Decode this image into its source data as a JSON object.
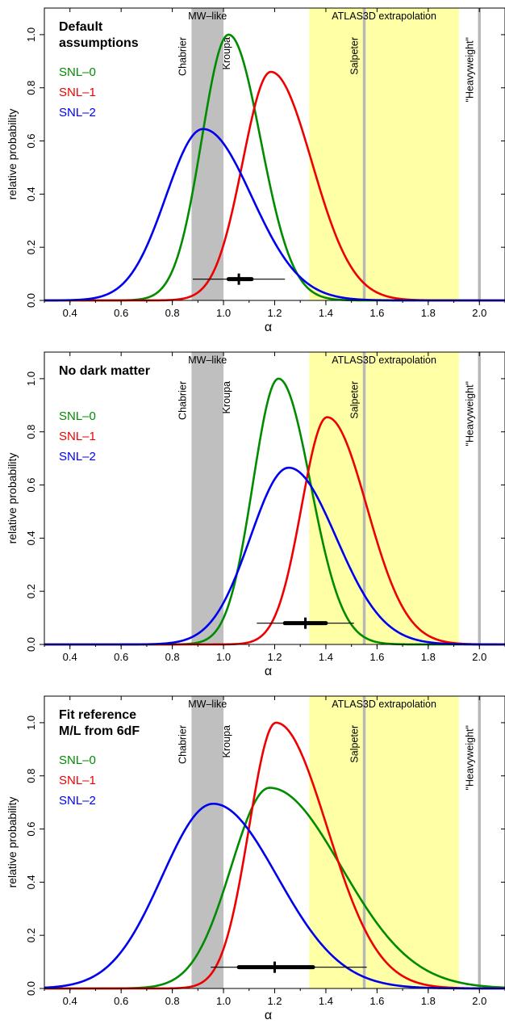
{
  "chart_data": [
    {
      "type": "line",
      "title": "",
      "annotation": [
        "Default",
        "assumptions"
      ],
      "xlabel": "α",
      "ylabel": "relative probability",
      "xlim": [
        0.3,
        2.1
      ],
      "ylim": [
        0.0,
        1.1
      ],
      "xticks": [
        "0.4",
        "0.6",
        "0.8",
        "1.0",
        "1.2",
        "1.4",
        "1.6",
        "1.8",
        "2.0"
      ],
      "yticks": [
        "0.0",
        "0.2",
        "0.4",
        "0.6",
        "0.8",
        "1.0"
      ],
      "bands": [
        {
          "label": "MW–like",
          "x": [
            0.875,
            1.0
          ],
          "color": "#bfbfbf"
        },
        {
          "label": "ATLAS3D extrapolation",
          "x": [
            1.335,
            1.92
          ],
          "color": "#ffffa6"
        }
      ],
      "vlines": [
        {
          "label": "Chabrier",
          "x": 0.875
        },
        {
          "label": "Kroupa",
          "x": 1.0
        },
        {
          "label": "Salpeter",
          "x": 1.55
        },
        {
          "label": "\"Heavyweight\"",
          "x": 2.0
        }
      ],
      "series": [
        {
          "name": "SNL–0",
          "color": "#008b00",
          "peak": 1.02,
          "amplitude": 1.0,
          "sigma_left": 0.105,
          "sigma_right": 0.125
        },
        {
          "name": "SNL–1",
          "color": "#ee0000",
          "peak": 1.185,
          "amplitude": 0.86,
          "sigma_left": 0.11,
          "sigma_right": 0.16
        },
        {
          "name": "SNL–2",
          "color": "#0000ee",
          "peak": 0.92,
          "amplitude": 0.645,
          "sigma_left": 0.145,
          "sigma_right": 0.19
        }
      ],
      "interval": {
        "median": 1.06,
        "inner": [
          1.02,
          1.11
        ],
        "outer": [
          0.88,
          1.24
        ],
        "y": 0.08
      }
    },
    {
      "type": "line",
      "title": "",
      "annotation": [
        "No dark matter"
      ],
      "xlabel": "α",
      "ylabel": "relative probability",
      "xlim": [
        0.3,
        2.1
      ],
      "ylim": [
        0.0,
        1.1
      ],
      "xticks": [
        "0.4",
        "0.6",
        "0.8",
        "1.0",
        "1.2",
        "1.4",
        "1.6",
        "1.8",
        "2.0"
      ],
      "yticks": [
        "0.0",
        "0.2",
        "0.4",
        "0.6",
        "0.8",
        "1.0"
      ],
      "bands": [
        {
          "label": "MW–like",
          "x": [
            0.875,
            1.0
          ],
          "color": "#bfbfbf"
        },
        {
          "label": "ATLAS3D extrapolation",
          "x": [
            1.335,
            1.92
          ],
          "color": "#ffffa6"
        }
      ],
      "vlines": [
        {
          "label": "Chabrier",
          "x": 0.875
        },
        {
          "label": "Kroupa",
          "x": 1.0
        },
        {
          "label": "Salpeter",
          "x": 1.55
        },
        {
          "label": "\"Heavyweight\"",
          "x": 2.0
        }
      ],
      "series": [
        {
          "name": "SNL–0",
          "color": "#008b00",
          "peak": 1.215,
          "amplitude": 1.0,
          "sigma_left": 0.1,
          "sigma_right": 0.125
        },
        {
          "name": "SNL–1",
          "color": "#ee0000",
          "peak": 1.405,
          "amplitude": 0.855,
          "sigma_left": 0.1,
          "sigma_right": 0.155
        },
        {
          "name": "SNL–2",
          "color": "#0000ee",
          "peak": 1.255,
          "amplitude": 0.665,
          "sigma_left": 0.15,
          "sigma_right": 0.185
        }
      ],
      "interval": {
        "median": 1.32,
        "inner": [
          1.24,
          1.4
        ],
        "outer": [
          1.13,
          1.51
        ],
        "y": 0.08
      }
    },
    {
      "type": "line",
      "title": "",
      "annotation": [
        "Fit reference",
        "M/L from 6dF"
      ],
      "xlabel": "α",
      "ylabel": "relative probability",
      "xlim": [
        0.3,
        2.1
      ],
      "ylim": [
        0.0,
        1.1
      ],
      "xticks": [
        "0.4",
        "0.6",
        "0.8",
        "1.0",
        "1.2",
        "1.4",
        "1.6",
        "1.8",
        "2.0"
      ],
      "yticks": [
        "0.0",
        "0.2",
        "0.4",
        "0.6",
        "0.8",
        "1.0"
      ],
      "bands": [
        {
          "label": "MW–like",
          "x": [
            0.875,
            1.0
          ],
          "color": "#bfbfbf"
        },
        {
          "label": "ATLAS3D extrapolation",
          "x": [
            1.335,
            1.92
          ],
          "color": "#ffffa6"
        }
      ],
      "vlines": [
        {
          "label": "Chabrier",
          "x": 0.875
        },
        {
          "label": "Kroupa",
          "x": 1.0
        },
        {
          "label": "Salpeter",
          "x": 1.55
        },
        {
          "label": "\"Heavyweight\"",
          "x": 2.0
        }
      ],
      "series": [
        {
          "name": "SNL–0",
          "color": "#008b00",
          "peak": 1.18,
          "amplitude": 0.755,
          "sigma_left": 0.15,
          "sigma_right": 0.28
        },
        {
          "name": "SNL–1",
          "color": "#ee0000",
          "peak": 1.205,
          "amplitude": 1.0,
          "sigma_left": 0.105,
          "sigma_right": 0.2
        },
        {
          "name": "SNL–2",
          "color": "#0000ee",
          "peak": 0.96,
          "amplitude": 0.695,
          "sigma_left": 0.2,
          "sigma_right": 0.25
        }
      ],
      "interval": {
        "median": 1.2,
        "inner": [
          1.06,
          1.35
        ],
        "outer": [
          0.95,
          1.56
        ],
        "y": 0.08
      }
    }
  ]
}
